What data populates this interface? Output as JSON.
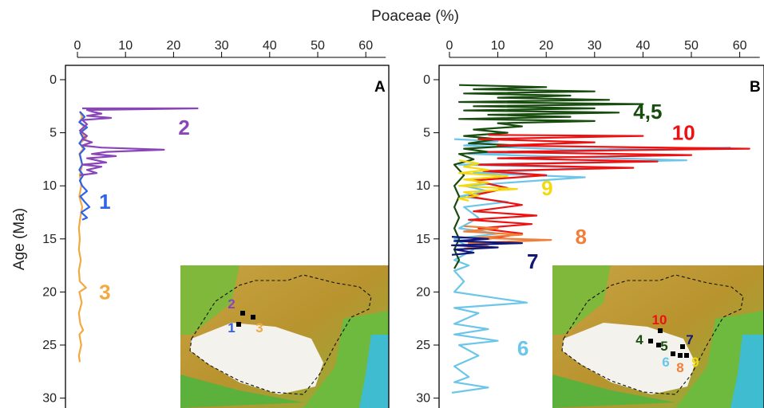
{
  "xlabel": "Poaceae (%)",
  "ylabel": "Age (Ma)",
  "colors": {
    "s1": "#2f63e8",
    "s2": "#8a45b8",
    "s3": "#f2a941",
    "s4_5": "#184d0f",
    "s6": "#6cc6ea",
    "s7": "#10167a",
    "s8": "#f07f38",
    "s9": "#f5d90c",
    "s10": "#ee1111"
  },
  "chart_data": [
    {
      "type": "line",
      "panel": "A",
      "xlim": [
        0,
        65
      ],
      "ylim": [
        0,
        30
      ],
      "xticks": [
        0,
        10,
        20,
        30,
        40,
        50,
        60
      ],
      "yticks": [
        0,
        5,
        10,
        15,
        20,
        25,
        30
      ],
      "series": [
        {
          "name": "3",
          "color_key": "s3",
          "label_pos": [
            4.5,
            20
          ],
          "points": [
            [
              0.5,
              3
            ],
            [
              1,
              3.5
            ],
            [
              0.4,
              4
            ],
            [
              1.5,
              4.5
            ],
            [
              0.6,
              5
            ],
            [
              1.8,
              5.5
            ],
            [
              0.5,
              6
            ],
            [
              1.2,
              6.5
            ],
            [
              0.4,
              7
            ],
            [
              1,
              8
            ],
            [
              0.5,
              9
            ],
            [
              0.8,
              10
            ],
            [
              0.4,
              11
            ],
            [
              1,
              12
            ],
            [
              0.6,
              13
            ],
            [
              0.3,
              14
            ],
            [
              0.5,
              15
            ],
            [
              0.3,
              16
            ],
            [
              0.7,
              17
            ],
            [
              0.3,
              18
            ],
            [
              0.5,
              19
            ],
            [
              1.8,
              19.6
            ],
            [
              0.4,
              20
            ],
            [
              0.9,
              21
            ],
            [
              0.3,
              22
            ],
            [
              0.6,
              23
            ],
            [
              1.2,
              23.6
            ],
            [
              0.4,
              24
            ],
            [
              0.8,
              25
            ],
            [
              0.3,
              26
            ],
            [
              0.5,
              26.6
            ]
          ]
        },
        {
          "name": "1",
          "color_key": "s1",
          "label_pos": [
            4.5,
            11.5
          ],
          "points": [
            [
              0.5,
              3
            ],
            [
              1.5,
              3.5
            ],
            [
              0.4,
              4
            ],
            [
              2,
              4.5
            ],
            [
              0.6,
              5
            ],
            [
              1.2,
              5.5
            ],
            [
              0.4,
              6
            ],
            [
              1.5,
              6.5
            ],
            [
              0.5,
              7
            ],
            [
              1,
              8
            ],
            [
              0.4,
              8.5
            ],
            [
              1.2,
              9
            ],
            [
              0.5,
              9.5
            ],
            [
              1,
              10
            ],
            [
              2,
              10.5
            ],
            [
              0.6,
              11
            ],
            [
              1.5,
              11.5
            ],
            [
              2.5,
              12
            ],
            [
              0.8,
              12.5
            ],
            [
              2,
              13
            ],
            [
              1,
              13.2
            ]
          ]
        },
        {
          "name": "2",
          "color_key": "s2",
          "label_pos": [
            21,
            4.5
          ],
          "points": [
            [
              1,
              2.7
            ],
            [
              25,
              2.7
            ],
            [
              2,
              2.85
            ],
            [
              3,
              3
            ],
            [
              5,
              3.2
            ],
            [
              2,
              3.4
            ],
            [
              7,
              3.6
            ],
            [
              1,
              3.8
            ],
            [
              2,
              4.2
            ],
            [
              0.5,
              4.8
            ],
            [
              2,
              5.3
            ],
            [
              1,
              5.6
            ],
            [
              3,
              5.9
            ],
            [
              1,
              6.2
            ],
            [
              5,
              6.4
            ],
            [
              18,
              6.6
            ],
            [
              6,
              6.8
            ],
            [
              3,
              7
            ],
            [
              8,
              7.2
            ],
            [
              2,
              7.4
            ],
            [
              4,
              7.6
            ],
            [
              6,
              7.8
            ],
            [
              1,
              8
            ],
            [
              5,
              8.2
            ],
            [
              2,
              8.5
            ],
            [
              4,
              8.8
            ],
            [
              0.5,
              9
            ]
          ]
        }
      ],
      "map_labels": [
        {
          "text": "2",
          "color_key": "s2"
        },
        {
          "text": "1",
          "color_key": "s1"
        },
        {
          "text": "3",
          "color_key": "s3"
        }
      ]
    },
    {
      "type": "line",
      "panel": "B",
      "xlim": [
        0,
        65
      ],
      "ylim": [
        0,
        30
      ],
      "xticks": [
        0,
        10,
        20,
        30,
        40,
        50,
        60
      ],
      "yticks": [
        0,
        5,
        10,
        15,
        20,
        25,
        30
      ],
      "series": [
        {
          "name": "6",
          "color_key": "s6",
          "label_pos": [
            14,
            25.3
          ],
          "points": [
            [
              1,
              5.6
            ],
            [
              10,
              5.8
            ],
            [
              3,
              6.2
            ],
            [
              25,
              6.6
            ],
            [
              58,
              6.4
            ],
            [
              4,
              7
            ],
            [
              49,
              7.6
            ],
            [
              2,
              8
            ],
            [
              30,
              8.3
            ],
            [
              5,
              8.8
            ],
            [
              28,
              9.2
            ],
            [
              3,
              10
            ],
            [
              8,
              10.5
            ],
            [
              2,
              11
            ],
            [
              12,
              11.5
            ],
            [
              3,
              12
            ],
            [
              6,
              13
            ],
            [
              2,
              14
            ],
            [
              10,
              14.5
            ],
            [
              1,
              15
            ],
            [
              5,
              16
            ],
            [
              1,
              17
            ],
            [
              4,
              17.5
            ],
            [
              1,
              18
            ],
            [
              3,
              19
            ],
            [
              1,
              20
            ],
            [
              16,
              21
            ],
            [
              1,
              21.5
            ],
            [
              6,
              22
            ],
            [
              1,
              23
            ],
            [
              8,
              23.5
            ],
            [
              1,
              24
            ],
            [
              10,
              24.6
            ],
            [
              2,
              25
            ],
            [
              6,
              26
            ],
            [
              1,
              27
            ],
            [
              4,
              28
            ],
            [
              1,
              28.5
            ],
            [
              8,
              29
            ],
            [
              0.5,
              29.5
            ]
          ]
        },
        {
          "name": "4,5",
          "color_key": "s4_5",
          "label_pos": [
            38,
            3
          ],
          "points": [
            [
              2,
              0.5
            ],
            [
              20,
              0.7
            ],
            [
              5,
              0.9
            ],
            [
              30,
              1.1
            ],
            [
              3,
              1.3
            ],
            [
              25,
              1.5
            ],
            [
              10,
              1.7
            ],
            [
              33,
              1.9
            ],
            [
              2,
              2.1
            ],
            [
              40,
              2.3
            ],
            [
              5,
              2.5
            ],
            [
              30,
              2.7
            ],
            [
              3,
              2.9
            ],
            [
              35,
              3.1
            ],
            [
              8,
              3.3
            ],
            [
              25,
              3.5
            ],
            [
              2,
              3.7
            ],
            [
              30,
              3.9
            ],
            [
              10,
              4.1
            ],
            [
              15,
              4.4
            ],
            [
              5,
              4.7
            ],
            [
              12,
              5
            ],
            [
              3,
              5.3
            ],
            [
              10,
              5.6
            ],
            [
              4,
              6
            ],
            [
              15,
              6.2
            ],
            [
              3,
              6.5
            ],
            [
              8,
              6.8
            ],
            [
              2,
              7
            ],
            [
              5,
              7.5
            ],
            [
              1,
              8
            ],
            [
              3,
              9
            ],
            [
              1,
              10
            ],
            [
              2,
              11
            ],
            [
              1,
              12
            ],
            [
              2,
              13
            ],
            [
              1,
              14
            ],
            [
              2,
              15
            ],
            [
              1,
              16
            ],
            [
              2,
              17
            ],
            [
              1,
              17.8
            ]
          ]
        },
        {
          "name": "10",
          "color_key": "s10",
          "label_pos": [
            46,
            5
          ],
          "points": [
            [
              8,
              5.2
            ],
            [
              40,
              5.3
            ],
            [
              6,
              5.6
            ],
            [
              30,
              5.9
            ],
            [
              10,
              6.2
            ],
            [
              62,
              6.5
            ],
            [
              8,
              6.8
            ],
            [
              50,
              7.1
            ],
            [
              10,
              7.4
            ],
            [
              43,
              7.7
            ],
            [
              6,
              8
            ],
            [
              38,
              8.3
            ],
            [
              7,
              8.6
            ],
            [
              20,
              9
            ],
            [
              5,
              9.5
            ],
            [
              12,
              10.2
            ],
            [
              4,
              11
            ],
            [
              15,
              11.8
            ],
            [
              5,
              12.4
            ],
            [
              18,
              12.8
            ],
            [
              4,
              13.2
            ],
            [
              17,
              13.6
            ],
            [
              6,
              14
            ],
            [
              15,
              14.5
            ],
            [
              8,
              15
            ]
          ]
        },
        {
          "name": "9",
          "color_key": "s9",
          "label_pos": [
            19,
            10.2
          ],
          "points": [
            [
              2,
              7.6
            ],
            [
              6,
              7.9
            ],
            [
              3,
              8.2
            ],
            [
              8,
              8.5
            ],
            [
              2,
              8.8
            ],
            [
              12,
              9.1
            ],
            [
              3,
              9.4
            ],
            [
              8,
              9.7
            ],
            [
              2,
              10
            ],
            [
              14,
              10.3
            ],
            [
              3,
              10.6
            ],
            [
              6,
              10.9
            ],
            [
              2,
              11.2
            ],
            [
              4,
              11.4
            ]
          ]
        },
        {
          "name": "8",
          "color_key": "s8",
          "label_pos": [
            26,
            14.8
          ],
          "points": [
            [
              3,
              13.8
            ],
            [
              10,
              14
            ],
            [
              3,
              14.3
            ],
            [
              15,
              14.6
            ],
            [
              5,
              14.9
            ],
            [
              21,
              15.1
            ],
            [
              4,
              15.4
            ],
            [
              8,
              15.7
            ],
            [
              3,
              15.9
            ]
          ]
        },
        {
          "name": "7",
          "color_key": "s7",
          "label_pos": [
            16,
            17.1
          ],
          "points": [
            [
              0.5,
              14.8
            ],
            [
              8,
              15
            ],
            [
              1,
              15.2
            ],
            [
              15,
              15.4
            ],
            [
              0.5,
              15.6
            ],
            [
              10,
              15.8
            ],
            [
              1,
              16
            ],
            [
              5,
              16.3
            ],
            [
              0.5,
              16.5
            ]
          ]
        }
      ],
      "map_labels": [
        {
          "text": "10",
          "color_key": "s10"
        },
        {
          "text": "4",
          "color_key": "s4_5"
        },
        {
          "text": "5",
          "color_key": "s4_5"
        },
        {
          "text": "7",
          "color_key": "s7"
        },
        {
          "text": "6",
          "color_key": "s6"
        },
        {
          "text": "8",
          "color_key": "s8"
        },
        {
          "text": "9",
          "color_key": "s9"
        }
      ]
    }
  ]
}
